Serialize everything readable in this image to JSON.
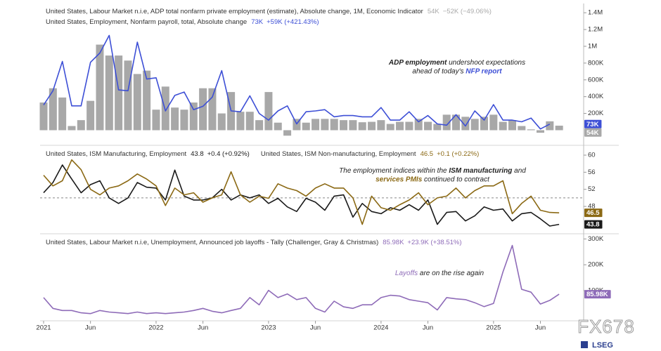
{
  "watermark": "FX678",
  "brand": "LSEG",
  "chart_data": [
    {
      "type": "combo",
      "x": [
        "2021-01",
        "2021-02",
        "2021-03",
        "2021-04",
        "2021-05",
        "2021-06",
        "2021-07",
        "2021-08",
        "2021-09",
        "2021-10",
        "2021-11",
        "2021-12",
        "2022-01",
        "2022-02",
        "2022-03",
        "2022-04",
        "2022-05",
        "2022-06",
        "2022-07",
        "2022-08",
        "2022-09",
        "2022-10",
        "2022-11",
        "2022-12",
        "2023-01",
        "2023-02",
        "2023-03",
        "2023-04",
        "2023-05",
        "2023-06",
        "2023-07",
        "2023-08",
        "2023-09",
        "2023-10",
        "2023-11",
        "2023-12",
        "2024-01",
        "2024-02",
        "2024-03",
        "2024-04",
        "2024-05",
        "2024-06",
        "2024-07",
        "2024-08",
        "2024-09",
        "2024-10",
        "2024-11",
        "2024-12",
        "2025-01",
        "2025-02",
        "2025-03",
        "2025-04",
        "2025-05",
        "2025-06",
        "2025-07",
        "2025-08"
      ],
      "ylim": [
        -180000,
        1510000
      ],
      "yticks": [
        {
          "value": 200000,
          "label": "200K"
        },
        {
          "value": 400000,
          "label": "400K"
        },
        {
          "value": 600000,
          "label": "600K"
        },
        {
          "value": 800000,
          "label": "800K"
        },
        {
          "value": 1000000,
          "label": "1M"
        },
        {
          "value": 1200000,
          "label": "1.2M"
        },
        {
          "value": 1400000,
          "label": "1.4M"
        }
      ],
      "series": [
        {
          "name": "United States, Labour Market n.i.e, ADP total nonfarm private employment (estimate), Absolute change, 1M, Economic Indicator",
          "type": "bar",
          "color": "#a8a8a8",
          "change": "−52K (−49.06%)",
          "values": [
            330000,
            500000,
            390000,
            50000,
            120000,
            350000,
            1020000,
            890000,
            890000,
            830000,
            670000,
            710000,
            245000,
            520000,
            270000,
            245000,
            330000,
            500000,
            500000,
            200000,
            455000,
            220000,
            220000,
            120000,
            455000,
            90000,
            -65000,
            135000,
            90000,
            135000,
            135000,
            135000,
            120000,
            120000,
            95000,
            100000,
            120000,
            75000,
            100000,
            100000,
            135000,
            100000,
            75000,
            185000,
            185000,
            160000,
            135000,
            160000,
            185000,
            100000,
            120000,
            50000,
            10000,
            -30000,
            106000,
            54000
          ],
          "value_labels": [
            null,
            null,
            null,
            null,
            null,
            null,
            null,
            null,
            null,
            null,
            null,
            null,
            null,
            null,
            null,
            null,
            null,
            null,
            null,
            null,
            null,
            null,
            null,
            null,
            null,
            null,
            null,
            null,
            null,
            null,
            null,
            null,
            null,
            null,
            null,
            null,
            null,
            null,
            null,
            null,
            null,
            null,
            null,
            null,
            null,
            null,
            null,
            null,
            null,
            null,
            null,
            null,
            null,
            null,
            null,
            "54K"
          ]
        },
        {
          "name": "United States, Employment, Nonfarm payroll, total, Absolute change",
          "type": "line",
          "color": "#3d4fd6",
          "change": "+59K (+421.43%)",
          "values": [
            300000,
            470000,
            820000,
            290000,
            290000,
            810000,
            920000,
            1130000,
            480000,
            470000,
            1050000,
            610000,
            625000,
            230000,
            415000,
            455000,
            245000,
            285000,
            395000,
            710000,
            230000,
            220000,
            410000,
            200000,
            120000,
            230000,
            290000,
            75000,
            220000,
            230000,
            245000,
            160000,
            175000,
            175000,
            160000,
            160000,
            270000,
            120000,
            120000,
            220000,
            100000,
            175000,
            75000,
            60000,
            185000,
            50000,
            230000,
            120000,
            305000,
            120000,
            120000,
            100000,
            145000,
            15000,
            73000,
            null
          ],
          "value_labels": [
            null,
            null,
            null,
            null,
            null,
            null,
            null,
            null,
            null,
            null,
            null,
            null,
            null,
            null,
            null,
            null,
            null,
            null,
            null,
            null,
            null,
            null,
            null,
            null,
            null,
            null,
            null,
            null,
            null,
            null,
            null,
            null,
            null,
            null,
            null,
            null,
            null,
            null,
            null,
            null,
            null,
            null,
            null,
            null,
            null,
            null,
            null,
            null,
            null,
            null,
            null,
            null,
            null,
            null,
            "73K",
            null
          ]
        }
      ],
      "annotation": [
        [
          {
            "text": "ADP employment",
            "bold": true
          },
          {
            "text": " undershoot expectations"
          }
        ],
        [
          {
            "text": "ahead of today's "
          },
          {
            "text": "NFP report",
            "bold": true,
            "color": "#3d4fd6"
          }
        ]
      ]
    },
    {
      "type": "line",
      "x": [
        "2021-01",
        "2021-02",
        "2021-03",
        "2021-04",
        "2021-05",
        "2021-06",
        "2021-07",
        "2021-08",
        "2021-09",
        "2021-10",
        "2021-11",
        "2021-12",
        "2022-01",
        "2022-02",
        "2022-03",
        "2022-04",
        "2022-05",
        "2022-06",
        "2022-07",
        "2022-08",
        "2022-09",
        "2022-10",
        "2022-11",
        "2022-12",
        "2023-01",
        "2023-02",
        "2023-03",
        "2023-04",
        "2023-05",
        "2023-06",
        "2023-07",
        "2023-08",
        "2023-09",
        "2023-10",
        "2023-11",
        "2023-12",
        "2024-01",
        "2024-02",
        "2024-03",
        "2024-04",
        "2024-05",
        "2024-06",
        "2024-07",
        "2024-08",
        "2024-09",
        "2024-10",
        "2024-11",
        "2024-12",
        "2025-01",
        "2025-02",
        "2025-03",
        "2025-04",
        "2025-05",
        "2025-06",
        "2025-07",
        "2025-08"
      ],
      "ylim": [
        41.6,
        62.3
      ],
      "yticks": [
        48,
        52,
        56,
        60
      ],
      "reference_line": 50,
      "series": [
        {
          "name": "United States, ISM Manufacturing, Employment",
          "color": "#1a1a1a",
          "change": "+0.4 (+0.92%)",
          "values": [
            51.2,
            53.6,
            57.7,
            54.4,
            51.2,
            53.1,
            54,
            50,
            48.7,
            50,
            53.6,
            52.5,
            52.3,
            49.5,
            56.5,
            50.4,
            49.5,
            49.5,
            50,
            52,
            49.5,
            50.7,
            50,
            50.7,
            48.7,
            49.9,
            47.9,
            46.8,
            49.9,
            49,
            47.1,
            50.4,
            50.7,
            45.5,
            48.7,
            46.8,
            46.3,
            47.7,
            47.1,
            48.4,
            47.1,
            49.5,
            43.8,
            46.6,
            46.8,
            44.6,
            45.8,
            47.9,
            47.1,
            47.4,
            44.6,
            46.3,
            46.6,
            45.1,
            43.4,
            43.8
          ]
        },
        {
          "name": "United States, ISM Non-manufacturing, Employment",
          "color": "#8b6914",
          "change": "+0.1 (+0.22%)",
          "values": [
            55.3,
            52.8,
            54,
            58.9,
            56.6,
            52,
            50.7,
            52.3,
            52.8,
            54,
            55.6,
            54.4,
            52.8,
            48.2,
            52.3,
            50.7,
            51.2,
            49,
            50,
            50.7,
            56.1,
            50.7,
            49,
            50.4,
            49.9,
            53.3,
            52.3,
            51.7,
            50.4,
            52.3,
            53.3,
            52.3,
            52.3,
            50,
            43.8,
            50.4,
            47.7,
            47.1,
            48.4,
            49.5,
            51.2,
            48.4,
            50,
            50.4,
            52.3,
            50,
            51.7,
            52.8,
            52.8,
            54,
            46.3,
            48.7,
            50.4,
            47.1,
            46.6,
            46.5
          ]
        }
      ],
      "annotation": [
        [
          {
            "text": "The employment indices within the "
          },
          {
            "text": "ISM manufacturing",
            "bold": true
          },
          {
            "text": " and"
          }
        ],
        [
          {
            "text": "services PMIs",
            "bold": true,
            "color": "#8b6914"
          },
          {
            "text": " continued to contract"
          }
        ]
      ]
    },
    {
      "type": "line",
      "x": [
        "2021-01",
        "2021-02",
        "2021-03",
        "2021-04",
        "2021-05",
        "2021-06",
        "2021-07",
        "2021-08",
        "2021-09",
        "2021-10",
        "2021-11",
        "2021-12",
        "2022-01",
        "2022-02",
        "2022-03",
        "2022-04",
        "2022-05",
        "2022-06",
        "2022-07",
        "2022-08",
        "2022-09",
        "2022-10",
        "2022-11",
        "2022-12",
        "2023-01",
        "2023-02",
        "2023-03",
        "2023-04",
        "2023-05",
        "2023-06",
        "2023-07",
        "2023-08",
        "2023-09",
        "2023-10",
        "2023-11",
        "2023-12",
        "2024-01",
        "2024-02",
        "2024-03",
        "2024-04",
        "2024-05",
        "2024-06",
        "2024-07",
        "2024-08",
        "2024-09",
        "2024-10",
        "2024-11",
        "2024-12",
        "2025-01",
        "2025-02",
        "2025-03",
        "2025-04",
        "2025-05",
        "2025-06",
        "2025-07",
        "2025-08"
      ],
      "xticks": [
        {
          "value": "2021-01",
          "label": "2021"
        },
        {
          "value": "2021-06",
          "label": "Jun"
        },
        {
          "value": "2022-01",
          "label": "2022"
        },
        {
          "value": "2022-06",
          "label": "Jun"
        },
        {
          "value": "2023-01",
          "label": "2023"
        },
        {
          "value": "2023-06",
          "label": "Jun"
        },
        {
          "value": "2024-01",
          "label": "2024"
        },
        {
          "value": "2024-06",
          "label": "Jun"
        },
        {
          "value": "2025-01",
          "label": "2025"
        },
        {
          "value": "2025-06",
          "label": "Jun"
        }
      ],
      "ylim": [
        -17000,
        320000
      ],
      "yticks": [
        {
          "value": 100000,
          "label": "100K"
        },
        {
          "value": 200000,
          "label": "200K"
        },
        {
          "value": 300000,
          "label": "300K"
        }
      ],
      "series": [
        {
          "name": "United States, Labour Market n.i.e, Unemployment, Announced job layoffs - Tally (Challenger, Gray & Christmas)",
          "color": "#8e6bb8",
          "change": "+23.9K (+38.51%)",
          "values": [
            73000,
            31000,
            23000,
            23000,
            14000,
            11000,
            23000,
            17000,
            14000,
            11000,
            17000,
            11000,
            14000,
            11000,
            14000,
            17000,
            23000,
            31000,
            20000,
            14000,
            23000,
            31000,
            73000,
            45000,
            101000,
            73000,
            87000,
            65000,
            73000,
            31000,
            17000,
            59000,
            37000,
            31000,
            45000,
            45000,
            73000,
            82000,
            79000,
            65000,
            59000,
            53000,
            25000,
            73000,
            68000,
            65000,
            53000,
            38000,
            50000,
            172000,
            275000,
            105000,
            94000,
            48000,
            62000,
            85980
          ],
          "value_labels": [
            null,
            null,
            null,
            null,
            null,
            null,
            null,
            null,
            null,
            null,
            null,
            null,
            null,
            null,
            null,
            null,
            null,
            null,
            null,
            null,
            null,
            null,
            null,
            null,
            null,
            null,
            null,
            null,
            null,
            null,
            null,
            null,
            null,
            null,
            null,
            null,
            null,
            null,
            null,
            null,
            null,
            null,
            null,
            null,
            null,
            null,
            null,
            null,
            null,
            null,
            null,
            null,
            null,
            null,
            null,
            "85.98K"
          ]
        }
      ],
      "annotation": [
        [
          {
            "text": "Layoffs",
            "color": "#8e6bb8"
          },
          {
            "text": " are on the rise again"
          }
        ]
      ]
    }
  ]
}
